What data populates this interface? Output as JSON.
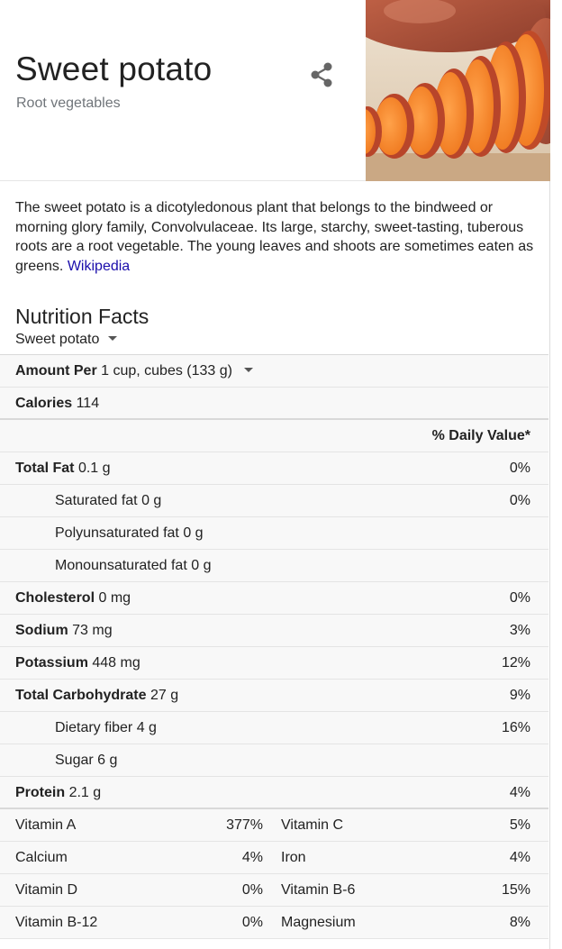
{
  "header": {
    "title": "Sweet potato",
    "subtitle": "Root vegetables",
    "share_icon": "share-icon"
  },
  "description": {
    "text": "The sweet potato is a dicotyledonous plant that belongs to the bindweed or morning glory family, Convolvulaceae. Its large, starchy, sweet-tasting, tuberous roots are a root vegetable. The young leaves and shoots are sometimes eaten as greens.",
    "link": "Wikipedia"
  },
  "nutrition": {
    "title": "Nutrition Facts",
    "food_select": "Sweet potato",
    "amount_label": "Amount Per",
    "amount_value": "1 cup, cubes (133 g)",
    "calories_label": "Calories",
    "calories_value": "114",
    "daily_value_header": "% Daily Value*",
    "rows": [
      {
        "label": "Total Fat",
        "value": "0.1 g",
        "pct": "0%"
      },
      {
        "label": "Saturated fat",
        "value": "0 g",
        "pct": "0%"
      },
      {
        "label": "Polyunsaturated fat",
        "value": "0 g",
        "pct": ""
      },
      {
        "label": "Monounsaturated fat",
        "value": "0 g",
        "pct": ""
      },
      {
        "label": "Cholesterol",
        "value": "0 mg",
        "pct": "0%"
      },
      {
        "label": "Sodium",
        "value": "73 mg",
        "pct": "3%"
      },
      {
        "label": "Potassium",
        "value": "448 mg",
        "pct": "12%"
      },
      {
        "label": "Total Carbohydrate",
        "value": "27 g",
        "pct": "9%"
      },
      {
        "label": "Dietary fiber",
        "value": "4 g",
        "pct": "16%"
      },
      {
        "label": "Sugar",
        "value": "6 g",
        "pct": ""
      },
      {
        "label": "Protein",
        "value": "2.1 g",
        "pct": "4%"
      }
    ],
    "vitamins": [
      {
        "name1": "Vitamin A",
        "val1": "377%",
        "name2": "Vitamin C",
        "val2": "5%"
      },
      {
        "name1": "Calcium",
        "val1": "4%",
        "name2": "Iron",
        "val2": "4%"
      },
      {
        "name1": "Vitamin D",
        "val1": "0%",
        "name2": "Vitamin B-6",
        "val2": "15%"
      },
      {
        "name1": "Vitamin B-12",
        "val1": "0%",
        "name2": "Magnesium",
        "val2": "8%"
      }
    ]
  },
  "colors": {
    "link": "#1a0dab",
    "subtitle": "#70757a",
    "table_bg": "#f8f8f8"
  }
}
